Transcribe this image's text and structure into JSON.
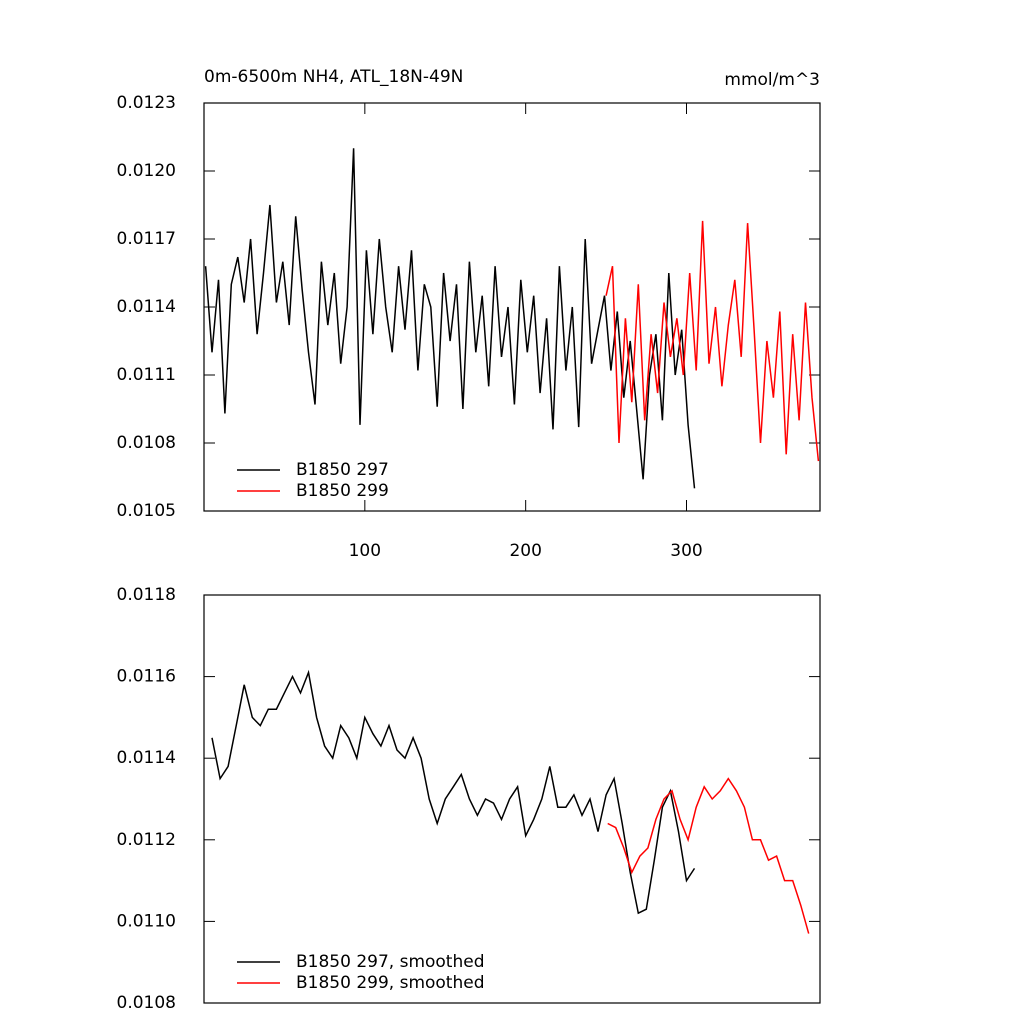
{
  "chart_data": [
    {
      "type": "line",
      "title": "0m-6500m NH4, ATL_18N-49N",
      "unit_label": "mmol/m^3",
      "xlim": [
        0,
        383
      ],
      "ylim": [
        0.0105,
        0.0123
      ],
      "xticks": [
        100,
        200,
        300
      ],
      "yticks": [
        0.0105,
        0.0108,
        0.0111,
        0.0114,
        0.0117,
        {
          "value": 0.012,
          "label": "0.0120"
        },
        0.0123
      ],
      "series": [
        {
          "name": "B1850 297",
          "color": "#000000",
          "x": [
            1,
            5,
            9,
            13,
            17,
            21,
            25,
            29,
            33,
            37,
            41,
            45,
            49,
            53,
            57,
            61,
            65,
            69,
            73,
            77,
            81,
            85,
            89,
            93,
            97,
            101,
            105,
            109,
            113,
            117,
            121,
            125,
            129,
            133,
            137,
            141,
            145,
            149,
            153,
            157,
            161,
            165,
            169,
            173,
            177,
            181,
            185,
            189,
            193,
            197,
            201,
            205,
            209,
            213,
            217,
            221,
            225,
            229,
            233,
            237,
            241,
            245,
            249,
            253,
            257,
            261,
            265,
            269,
            273,
            277,
            281,
            285,
            289,
            293,
            297,
            301,
            305
          ],
          "values": [
            0.01158,
            0.0112,
            0.01152,
            0.01093,
            0.0115,
            0.01162,
            0.01142,
            0.0117,
            0.01128,
            0.01155,
            0.01185,
            0.01142,
            0.0116,
            0.01132,
            0.0118,
            0.01148,
            0.0112,
            0.01097,
            0.0116,
            0.01132,
            0.01155,
            0.01115,
            0.0114,
            0.0121,
            0.01088,
            0.01165,
            0.01128,
            0.0117,
            0.0114,
            0.0112,
            0.01158,
            0.0113,
            0.01165,
            0.01112,
            0.0115,
            0.0114,
            0.01096,
            0.01155,
            0.01125,
            0.0115,
            0.01095,
            0.0116,
            0.0112,
            0.01145,
            0.01105,
            0.01158,
            0.01118,
            0.0114,
            0.01097,
            0.01152,
            0.0112,
            0.01145,
            0.01102,
            0.01135,
            0.01086,
            0.01158,
            0.01112,
            0.0114,
            0.01087,
            0.0117,
            0.01115,
            0.0113,
            0.01145,
            0.01112,
            0.01138,
            0.011,
            0.01125,
            0.01095,
            0.01064,
            0.0111,
            0.01128,
            0.0109,
            0.01155,
            0.0111,
            0.0113,
            0.01088,
            0.0106
          ]
        },
        {
          "name": "B1850 299",
          "color": "#ff0000",
          "x": [
            250,
            254,
            258,
            262,
            266,
            270,
            274,
            278,
            282,
            286,
            290,
            294,
            298,
            302,
            306,
            310,
            314,
            318,
            322,
            326,
            330,
            334,
            338,
            342,
            346,
            350,
            354,
            358,
            362,
            366,
            370,
            374,
            378,
            382
          ],
          "values": [
            0.01145,
            0.01158,
            0.0108,
            0.01135,
            0.01098,
            0.0115,
            0.0109,
            0.01128,
            0.01102,
            0.01142,
            0.01118,
            0.01135,
            0.0111,
            0.01155,
            0.01112,
            0.01178,
            0.01115,
            0.0114,
            0.01105,
            0.01132,
            0.01152,
            0.01118,
            0.01177,
            0.0113,
            0.0108,
            0.01125,
            0.011,
            0.01138,
            0.01075,
            0.01128,
            0.0109,
            0.01142,
            0.011,
            0.01072
          ]
        }
      ]
    },
    {
      "type": "line",
      "xlim": [
        0,
        383
      ],
      "ylim": [
        0.0108,
        0.0118
      ],
      "yticks": [
        0.0108,
        {
          "value": 0.011,
          "label": "0.0110"
        },
        0.0112,
        0.0114,
        0.0116,
        0.0118
      ],
      "series": [
        {
          "name": "B1850 297, smoothed",
          "color": "#000000",
          "x": [
            5,
            10,
            15,
            20,
            25,
            30,
            35,
            40,
            45,
            50,
            55,
            60,
            65,
            70,
            75,
            80,
            85,
            90,
            95,
            100,
            105,
            110,
            115,
            120,
            125,
            130,
            135,
            140,
            145,
            150,
            155,
            160,
            165,
            170,
            175,
            180,
            185,
            190,
            195,
            200,
            205,
            210,
            215,
            220,
            225,
            230,
            235,
            240,
            245,
            250,
            255,
            260,
            265,
            270,
            275,
            280,
            285,
            290,
            295,
            300,
            305
          ],
          "values": [
            0.01145,
            0.01135,
            0.01138,
            0.01148,
            0.01158,
            0.0115,
            0.01148,
            0.01152,
            0.01152,
            0.01156,
            0.0116,
            0.01156,
            0.01161,
            0.0115,
            0.01143,
            0.0114,
            0.01148,
            0.01145,
            0.0114,
            0.0115,
            0.01146,
            0.01143,
            0.01148,
            0.01142,
            0.0114,
            0.01145,
            0.0114,
            0.0113,
            0.01124,
            0.0113,
            0.01133,
            0.01136,
            0.0113,
            0.01126,
            0.0113,
            0.01129,
            0.01125,
            0.0113,
            0.01133,
            0.01121,
            0.01125,
            0.0113,
            0.01138,
            0.01128,
            0.01128,
            0.01131,
            0.01126,
            0.0113,
            0.01122,
            0.01131,
            0.01135,
            0.01124,
            0.01112,
            0.01102,
            0.01103,
            0.01115,
            0.01128,
            0.01132,
            0.01122,
            0.0111,
            0.01113
          ]
        },
        {
          "name": "B1850 299, smoothed",
          "color": "#ff0000",
          "x": [
            251,
            256,
            261,
            266,
            271,
            276,
            281,
            286,
            291,
            296,
            301,
            306,
            311,
            316,
            321,
            326,
            331,
            336,
            341,
            346,
            351,
            356,
            361,
            366,
            371,
            376
          ],
          "values": [
            0.01124,
            0.01123,
            0.01118,
            0.01112,
            0.01116,
            0.01118,
            0.01125,
            0.0113,
            0.01132,
            0.01125,
            0.0112,
            0.01128,
            0.01133,
            0.0113,
            0.01132,
            0.01135,
            0.01132,
            0.01128,
            0.0112,
            0.0112,
            0.01115,
            0.01116,
            0.0111,
            0.0111,
            0.01104,
            0.01097
          ]
        }
      ]
    }
  ]
}
